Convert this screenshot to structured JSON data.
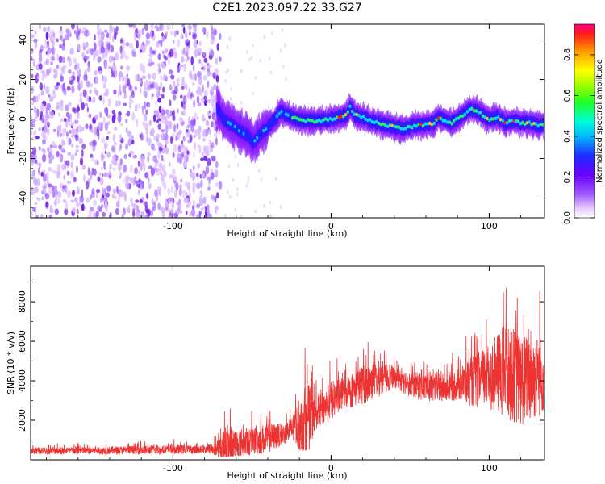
{
  "page": {
    "title": "C2E1.2023.097.22.33.G27"
  },
  "chart_data": [
    {
      "type": "heatmap",
      "title": "",
      "xlabel": "Height of straight line (km)",
      "ylabel": "Frequency (Hz)",
      "xlim": [
        -190,
        135
      ],
      "ylim": [
        -50,
        48
      ],
      "x_ticks": [
        -100,
        0,
        100
      ],
      "y_ticks": [
        -40,
        -20,
        0,
        20,
        40
      ],
      "grid": false,
      "noise_region_x": [
        -190,
        -70
      ],
      "ridge": {
        "x": [
          -72,
          -68,
          -63,
          -58,
          -53,
          -49,
          -45,
          -40,
          -35,
          -32,
          -28,
          -22,
          -15,
          -8,
          0,
          5,
          10,
          12,
          15,
          20,
          25,
          30,
          35,
          40,
          45,
          50,
          55,
          60,
          65,
          68,
          72,
          76,
          80,
          85,
          88,
          92,
          96,
          100,
          105,
          110,
          115,
          120,
          125,
          130,
          135
        ],
        "y": [
          6,
          0,
          -3,
          -6,
          -8,
          -12,
          -8,
          -4,
          0,
          4,
          2,
          0,
          -1,
          -1,
          0,
          1,
          2,
          6,
          2,
          1,
          -1,
          -2,
          -3,
          -4,
          -5,
          -4,
          -3,
          -3,
          -2,
          1,
          -1,
          -2,
          0,
          3,
          5,
          4,
          2,
          0,
          1,
          -2,
          -1,
          -2,
          -2,
          -3,
          -3
        ]
      },
      "colorbar": {
        "label": "Normalized spectral amplitude",
        "range": [
          0,
          0.95
        ],
        "ticks": [
          0.0,
          0.2,
          0.4,
          0.6,
          0.8
        ]
      }
    },
    {
      "type": "line",
      "title": "",
      "xlabel": "Height of straight line (km)",
      "ylabel": "SNR (10 * v/v)",
      "xlim": [
        -190,
        135
      ],
      "ylim": [
        0,
        9800
      ],
      "x_ticks": [
        -100,
        0,
        100
      ],
      "y_ticks": [
        2000,
        4000,
        6000,
        8000
      ],
      "grid": false,
      "series": [
        {
          "color": "#ee3333",
          "envelope": {
            "x": [
              -190,
              -150,
              -100,
              -80,
              -72,
              -65,
              -60,
              -50,
              -40,
              -30,
              -25,
              -15,
              -10,
              -5,
              0,
              10,
              20,
              30,
              40,
              50,
              60,
              70,
              80,
              90,
              100,
              110,
              120,
              130,
              135
            ],
            "mean": [
              450,
              470,
              520,
              520,
              580,
              650,
              800,
              950,
              1100,
              1300,
              1500,
              2000,
              2300,
              2600,
              3000,
              3400,
              3800,
              4100,
              4200,
              3800,
              3700,
              3600,
              3800,
              4000,
              4200,
              4500,
              4000,
              4200,
              4300
            ],
            "peak": [
              850,
              900,
              1050,
              950,
              1500,
              3500,
              2500,
              2600,
              2800,
              2500,
              3000,
              6400,
              4000,
              4500,
              5200,
              5200,
              6000,
              6200,
              5400,
              5200,
              5400,
              5200,
              5600,
              7000,
              7800,
              9800,
              9200,
              9000,
              8500
            ]
          }
        }
      ]
    }
  ],
  "colors": {
    "noise": "#7b2be0",
    "low": "#8a00ff",
    "mid": "#00e5ff",
    "high": "#ff2020",
    "snr_line": "#ee3333"
  }
}
